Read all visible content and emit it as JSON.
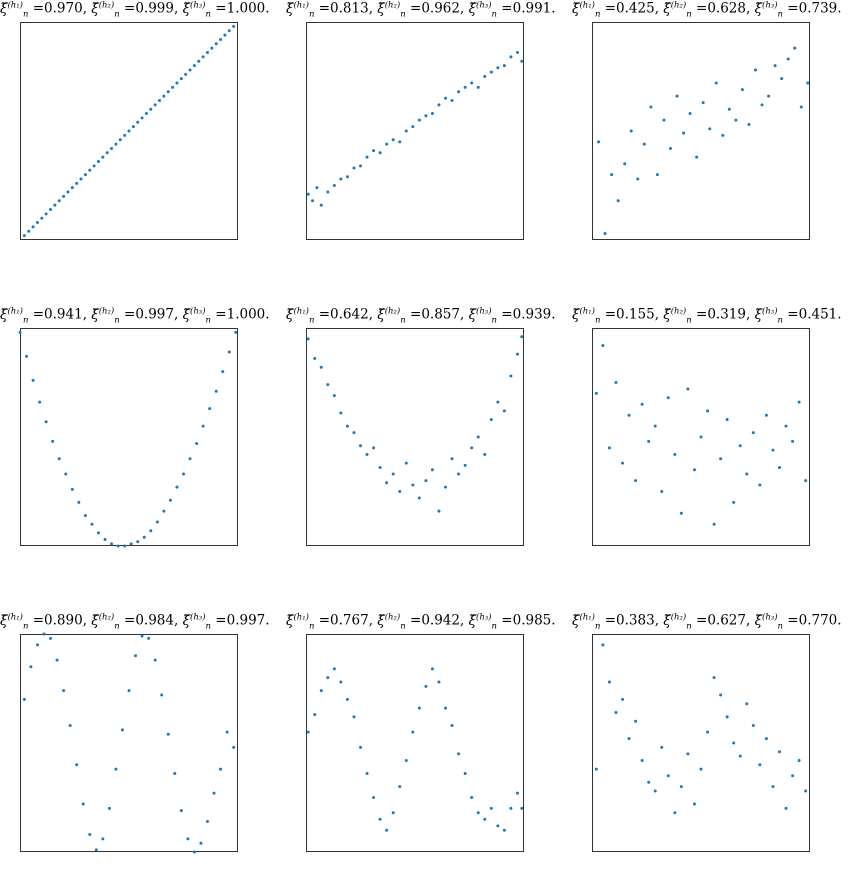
{
  "figure": {
    "marker_color": "#1f77b4",
    "term_symbol": "ξ̆",
    "term_sub": "n",
    "h_labels": [
      "(h₁)",
      "(h₂)",
      "(h₃)"
    ]
  },
  "chart_data": [
    {
      "type": "scatter",
      "title_values": [
        "0.970",
        "0.999",
        "1.000"
      ],
      "xlim": [
        0,
        1
      ],
      "ylim": [
        0,
        1
      ],
      "grid": false,
      "x": [
        0.02,
        0.04,
        0.06,
        0.08,
        0.1,
        0.12,
        0.14,
        0.16,
        0.18,
        0.2,
        0.22,
        0.24,
        0.26,
        0.28,
        0.3,
        0.32,
        0.34,
        0.36,
        0.38,
        0.4,
        0.42,
        0.44,
        0.46,
        0.48,
        0.5,
        0.52,
        0.54,
        0.56,
        0.58,
        0.6,
        0.62,
        0.64,
        0.66,
        0.68,
        0.7,
        0.72,
        0.74,
        0.76,
        0.78,
        0.8,
        0.82,
        0.84,
        0.86,
        0.88,
        0.9,
        0.92,
        0.94,
        0.96,
        0.98
      ],
      "y": [
        0.02,
        0.04,
        0.06,
        0.08,
        0.1,
        0.12,
        0.14,
        0.16,
        0.18,
        0.2,
        0.22,
        0.24,
        0.26,
        0.28,
        0.3,
        0.32,
        0.34,
        0.36,
        0.38,
        0.4,
        0.42,
        0.44,
        0.46,
        0.48,
        0.5,
        0.52,
        0.54,
        0.56,
        0.58,
        0.6,
        0.62,
        0.64,
        0.66,
        0.68,
        0.7,
        0.72,
        0.74,
        0.76,
        0.78,
        0.8,
        0.82,
        0.84,
        0.86,
        0.88,
        0.9,
        0.92,
        0.94,
        0.96,
        0.98
      ]
    },
    {
      "type": "scatter",
      "title_values": [
        "0.813",
        "0.962",
        "0.991"
      ],
      "xlim": [
        0,
        1
      ],
      "ylim": [
        0,
        1
      ],
      "grid": false,
      "x": [
        0.01,
        0.03,
        0.05,
        0.07,
        0.1,
        0.13,
        0.16,
        0.19,
        0.22,
        0.25,
        0.28,
        0.31,
        0.34,
        0.37,
        0.4,
        0.43,
        0.46,
        0.49,
        0.52,
        0.55,
        0.58,
        0.61,
        0.64,
        0.67,
        0.7,
        0.73,
        0.76,
        0.79,
        0.82,
        0.85,
        0.88,
        0.91,
        0.94,
        0.97,
        0.99
      ],
      "y": [
        0.21,
        0.18,
        0.24,
        0.16,
        0.22,
        0.25,
        0.28,
        0.29,
        0.33,
        0.34,
        0.38,
        0.41,
        0.4,
        0.44,
        0.46,
        0.45,
        0.5,
        0.52,
        0.55,
        0.57,
        0.58,
        0.62,
        0.65,
        0.64,
        0.68,
        0.7,
        0.72,
        0.7,
        0.75,
        0.77,
        0.79,
        0.8,
        0.84,
        0.86,
        0.82
      ]
    },
    {
      "type": "scatter",
      "title_values": [
        "0.425",
        "0.628",
        "0.739"
      ],
      "xlim": [
        0,
        1
      ],
      "ylim": [
        0,
        1
      ],
      "grid": false,
      "x": [
        0.03,
        0.06,
        0.09,
        0.12,
        0.15,
        0.18,
        0.21,
        0.24,
        0.27,
        0.3,
        0.33,
        0.36,
        0.39,
        0.42,
        0.45,
        0.48,
        0.51,
        0.54,
        0.57,
        0.6,
        0.63,
        0.66,
        0.69,
        0.72,
        0.75,
        0.78,
        0.81,
        0.84,
        0.87,
        0.9,
        0.93,
        0.96,
        0.99
      ],
      "y": [
        0.45,
        0.03,
        0.3,
        0.18,
        0.35,
        0.5,
        0.28,
        0.44,
        0.61,
        0.3,
        0.55,
        0.42,
        0.66,
        0.49,
        0.58,
        0.38,
        0.63,
        0.51,
        0.72,
        0.48,
        0.6,
        0.55,
        0.69,
        0.53,
        0.78,
        0.62,
        0.66,
        0.8,
        0.74,
        0.83,
        0.88,
        0.61,
        0.72
      ]
    },
    {
      "type": "scatter",
      "title_values": [
        "0.941",
        "0.997",
        "1.000"
      ],
      "xlim": [
        0,
        1
      ],
      "ylim": [
        0,
        1
      ],
      "grid": false,
      "x": [
        0.0,
        0.03,
        0.06,
        0.09,
        0.12,
        0.15,
        0.18,
        0.21,
        0.24,
        0.27,
        0.3,
        0.33,
        0.36,
        0.39,
        0.42,
        0.45,
        0.48,
        0.51,
        0.54,
        0.57,
        0.6,
        0.63,
        0.66,
        0.69,
        0.72,
        0.75,
        0.78,
        0.81,
        0.84,
        0.87,
        0.9,
        0.93,
        0.96,
        0.99
      ],
      "y": [
        0.98,
        0.87,
        0.76,
        0.66,
        0.57,
        0.48,
        0.4,
        0.33,
        0.26,
        0.2,
        0.14,
        0.1,
        0.06,
        0.03,
        0.01,
        0.0,
        0.0,
        0.01,
        0.02,
        0.04,
        0.07,
        0.11,
        0.16,
        0.21,
        0.27,
        0.33,
        0.4,
        0.47,
        0.55,
        0.63,
        0.71,
        0.8,
        0.89,
        0.98
      ]
    },
    {
      "type": "scatter",
      "title_values": [
        "0.642",
        "0.857",
        "0.939"
      ],
      "xlim": [
        0,
        1
      ],
      "ylim": [
        0,
        1
      ],
      "grid": false,
      "x": [
        0.01,
        0.04,
        0.07,
        0.1,
        0.13,
        0.16,
        0.19,
        0.22,
        0.25,
        0.28,
        0.31,
        0.34,
        0.37,
        0.4,
        0.43,
        0.46,
        0.49,
        0.52,
        0.55,
        0.58,
        0.61,
        0.64,
        0.67,
        0.7,
        0.73,
        0.76,
        0.79,
        0.82,
        0.85,
        0.88,
        0.91,
        0.94,
        0.97,
        0.99
      ],
      "y": [
        0.95,
        0.86,
        0.82,
        0.74,
        0.69,
        0.61,
        0.55,
        0.52,
        0.46,
        0.42,
        0.45,
        0.36,
        0.29,
        0.33,
        0.25,
        0.38,
        0.28,
        0.22,
        0.3,
        0.35,
        0.16,
        0.27,
        0.4,
        0.33,
        0.37,
        0.45,
        0.5,
        0.42,
        0.58,
        0.66,
        0.62,
        0.78,
        0.88,
        0.96
      ]
    },
    {
      "type": "scatter",
      "title_values": [
        "0.155",
        "0.319",
        "0.451"
      ],
      "xlim": [
        0,
        1
      ],
      "ylim": [
        0,
        1
      ],
      "grid": false,
      "x": [
        0.02,
        0.05,
        0.08,
        0.11,
        0.14,
        0.17,
        0.2,
        0.23,
        0.26,
        0.29,
        0.32,
        0.35,
        0.38,
        0.41,
        0.44,
        0.47,
        0.5,
        0.53,
        0.56,
        0.59,
        0.62,
        0.65,
        0.68,
        0.71,
        0.74,
        0.77,
        0.8,
        0.83,
        0.86,
        0.89,
        0.92,
        0.95,
        0.98
      ],
      "y": [
        0.7,
        0.92,
        0.45,
        0.75,
        0.38,
        0.6,
        0.3,
        0.65,
        0.48,
        0.55,
        0.25,
        0.68,
        0.42,
        0.15,
        0.72,
        0.35,
        0.5,
        0.62,
        0.1,
        0.4,
        0.58,
        0.2,
        0.46,
        0.33,
        0.52,
        0.28,
        0.6,
        0.44,
        0.36,
        0.55,
        0.48,
        0.66,
        0.3
      ]
    },
    {
      "type": "scatter",
      "title_values": [
        "0.890",
        "0.984",
        "0.997"
      ],
      "xlim": [
        0,
        1
      ],
      "ylim": [
        0,
        1
      ],
      "grid": false,
      "x": [
        0.02,
        0.05,
        0.08,
        0.11,
        0.14,
        0.17,
        0.2,
        0.23,
        0.26,
        0.29,
        0.32,
        0.35,
        0.38,
        0.41,
        0.44,
        0.47,
        0.5,
        0.53,
        0.56,
        0.59,
        0.62,
        0.65,
        0.68,
        0.71,
        0.74,
        0.77,
        0.8,
        0.83,
        0.86,
        0.89,
        0.92,
        0.95,
        0.98
      ],
      "y": [
        0.7,
        0.85,
        0.95,
        1.0,
        0.98,
        0.88,
        0.74,
        0.58,
        0.4,
        0.22,
        0.08,
        0.01,
        0.06,
        0.2,
        0.38,
        0.56,
        0.74,
        0.9,
        0.99,
        0.98,
        0.88,
        0.72,
        0.54,
        0.36,
        0.19,
        0.06,
        0.0,
        0.04,
        0.14,
        0.27,
        0.38,
        0.55,
        0.48
      ]
    },
    {
      "type": "scatter",
      "title_values": [
        "0.767",
        "0.942",
        "0.985"
      ],
      "xlim": [
        0,
        1
      ],
      "ylim": [
        0,
        1
      ],
      "grid": false,
      "x": [
        0.01,
        0.04,
        0.07,
        0.1,
        0.13,
        0.16,
        0.19,
        0.22,
        0.25,
        0.28,
        0.31,
        0.34,
        0.37,
        0.4,
        0.43,
        0.46,
        0.49,
        0.52,
        0.55,
        0.58,
        0.61,
        0.64,
        0.67,
        0.7,
        0.73,
        0.76,
        0.79,
        0.82,
        0.85,
        0.88,
        0.91,
        0.94,
        0.97,
        0.99
      ],
      "y": [
        0.55,
        0.63,
        0.74,
        0.8,
        0.84,
        0.78,
        0.7,
        0.62,
        0.48,
        0.36,
        0.25,
        0.15,
        0.1,
        0.18,
        0.3,
        0.42,
        0.55,
        0.66,
        0.76,
        0.84,
        0.78,
        0.66,
        0.58,
        0.45,
        0.36,
        0.25,
        0.18,
        0.15,
        0.2,
        0.12,
        0.1,
        0.2,
        0.27,
        0.2
      ]
    },
    {
      "type": "scatter",
      "title_values": [
        "0.383",
        "0.627",
        "0.770"
      ],
      "xlim": [
        0,
        1
      ],
      "ylim": [
        0,
        1
      ],
      "grid": false,
      "x": [
        0.02,
        0.05,
        0.08,
        0.11,
        0.14,
        0.17,
        0.2,
        0.23,
        0.26,
        0.29,
        0.32,
        0.35,
        0.38,
        0.41,
        0.44,
        0.47,
        0.5,
        0.53,
        0.56,
        0.59,
        0.62,
        0.65,
        0.68,
        0.71,
        0.74,
        0.77,
        0.8,
        0.83,
        0.86,
        0.89,
        0.92,
        0.95,
        0.98
      ],
      "y": [
        0.38,
        0.95,
        0.78,
        0.64,
        0.7,
        0.52,
        0.6,
        0.42,
        0.32,
        0.28,
        0.48,
        0.35,
        0.18,
        0.3,
        0.45,
        0.22,
        0.38,
        0.55,
        0.8,
        0.72,
        0.62,
        0.5,
        0.44,
        0.68,
        0.58,
        0.4,
        0.52,
        0.3,
        0.46,
        0.2,
        0.35,
        0.42,
        0.28
      ]
    }
  ]
}
